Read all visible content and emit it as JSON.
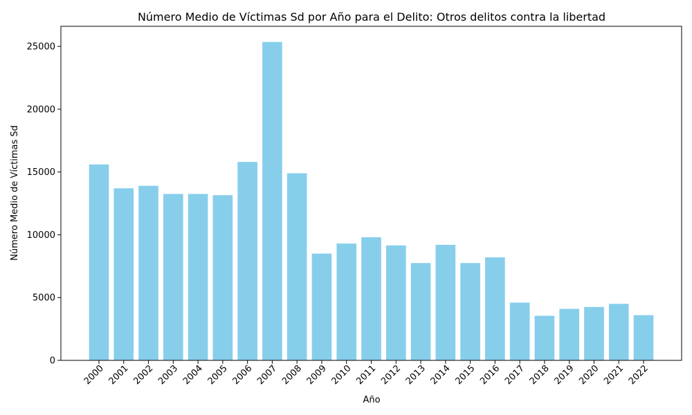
{
  "chart_data": {
    "type": "bar",
    "title": "Número Medio de Víctimas Sd por Año para el Delito: Otros delitos contra la libertad",
    "xlabel": "Año",
    "ylabel": "Número Medio de Víctimas Sd",
    "categories": [
      "2000",
      "2001",
      "2002",
      "2003",
      "2004",
      "2005",
      "2006",
      "2007",
      "2008",
      "2009",
      "2010",
      "2011",
      "2012",
      "2013",
      "2014",
      "2015",
      "2016",
      "2017",
      "2018",
      "2019",
      "2020",
      "2021",
      "2022"
    ],
    "values": [
      15600,
      13700,
      13900,
      13250,
      13250,
      13150,
      15800,
      25350,
      14900,
      8500,
      9300,
      9800,
      9150,
      7750,
      9200,
      7750,
      8200,
      4600,
      3550,
      4100,
      4250,
      4500,
      3600
    ],
    "ylim": [
      0,
      26600
    ],
    "yticks": [
      0,
      5000,
      10000,
      15000,
      20000,
      25000
    ],
    "bar_color": "#87ceeb",
    "grid": false,
    "legend": "none"
  }
}
